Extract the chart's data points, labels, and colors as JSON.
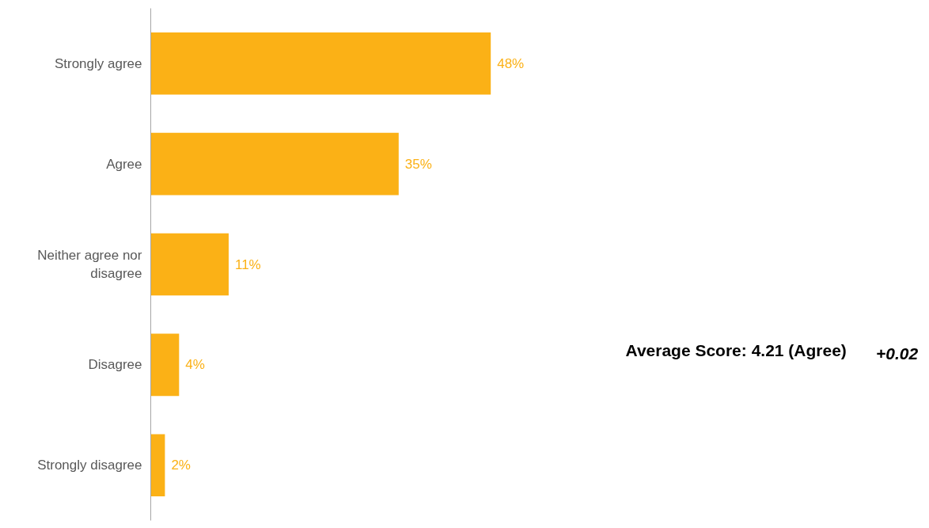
{
  "chart_data": {
    "type": "bar",
    "orientation": "horizontal",
    "categories": [
      "Strongly agree",
      "Agree",
      "Neither agree nor disagree",
      "Disagree",
      "Strongly disagree"
    ],
    "values": [
      48,
      35,
      11,
      4,
      2
    ],
    "value_labels": [
      "48%",
      "35%",
      "11%",
      "4%",
      "2%"
    ],
    "color": "#fbb116",
    "grid": false,
    "annotations": [
      "Average Score: 4.21 (Agree)",
      "+0.02"
    ]
  }
}
